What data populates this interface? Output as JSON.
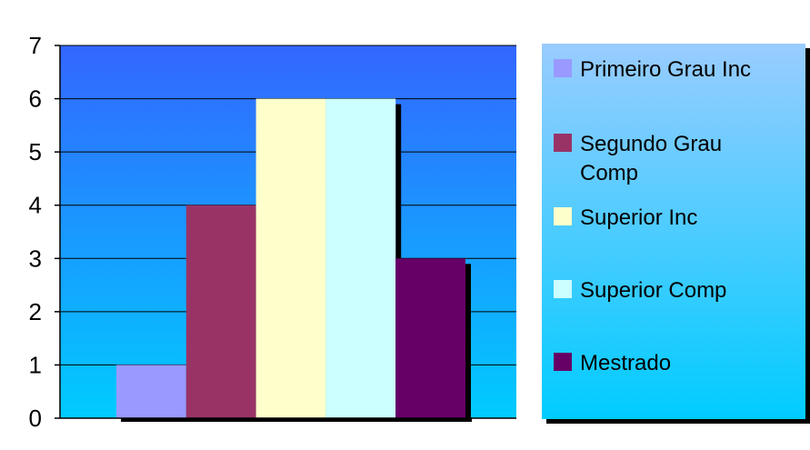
{
  "chart_data": {
    "type": "bar",
    "title": "",
    "xlabel": "",
    "ylabel": "",
    "ylim": [
      0,
      7
    ],
    "yticks": [
      0,
      1,
      2,
      3,
      4,
      5,
      6,
      7
    ],
    "grid": true,
    "legend_position": "right",
    "series": [
      {
        "name": "Primeiro Grau Inc",
        "value": 1,
        "color": "#9999ff"
      },
      {
        "name": "Segundo Grau Comp",
        "value": 4,
        "color": "#993366"
      },
      {
        "name": "Superior Inc",
        "value": 6,
        "color": "#ffffcc"
      },
      {
        "name": "Superior Comp",
        "value": 6,
        "color": "#ccffff"
      },
      {
        "name": "Mestrado",
        "value": 3,
        "color": "#660066"
      }
    ]
  }
}
